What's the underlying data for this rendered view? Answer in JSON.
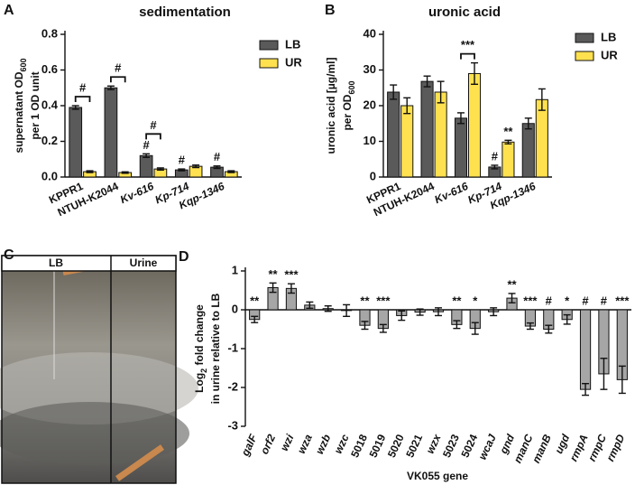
{
  "chart_data": [
    {
      "type": "bar",
      "panel_label": "A",
      "title": "sedimentation",
      "ylabel_lines": [
        [
          "supernatant OD",
          "600"
        ],
        [
          "per 1 OD unit"
        ]
      ],
      "categories": [
        "KPPR1",
        "NTUH-K2044",
        "Kv-616",
        "Kp-714",
        "Kqp-1346"
      ],
      "series": [
        {
          "name": "LB",
          "color": "#5a5a5a",
          "values": [
            0.39,
            0.5,
            0.12,
            0.04,
            0.055
          ],
          "errors": [
            0.01,
            0.01,
            0.01,
            0.005,
            0.007
          ],
          "annotations": [
            null,
            null,
            "#",
            "#",
            "#"
          ]
        },
        {
          "name": "UR",
          "color": "#ffe14f",
          "values": [
            0.03,
            0.025,
            0.045,
            0.06,
            0.03
          ],
          "errors": [
            0.005,
            0.004,
            0.006,
            0.007,
            0.005
          ],
          "annotations": [
            null,
            null,
            null,
            null,
            null
          ]
        }
      ],
      "brackets": [
        "#",
        "#",
        "#",
        null,
        null
      ],
      "ylim": [
        0,
        0.8
      ],
      "yticks": [
        {
          "value": 0,
          "label": "0.0"
        },
        0.2,
        0.4,
        0.6,
        0.8
      ],
      "legend": "top-right"
    },
    {
      "type": "bar",
      "panel_label": "B",
      "title": "uronic acid",
      "ylabel_lines": [
        [
          "uronic acid [µg/ml]"
        ],
        [
          "per OD",
          "600"
        ]
      ],
      "categories": [
        "KPPR1",
        "NTUH-K2044",
        "Kv-616",
        "Kp-714",
        "Kqp-1346"
      ],
      "series": [
        {
          "name": "LB",
          "color": "#5a5a5a",
          "values": [
            23.8,
            26.8,
            16.5,
            2.8,
            15
          ],
          "errors": [
            2,
            1.5,
            1.5,
            0.5,
            1.5
          ],
          "annotations": [
            null,
            null,
            null,
            "#",
            null
          ]
        },
        {
          "name": "UR",
          "color": "#ffe14f",
          "values": [
            20,
            23.8,
            29,
            9.8,
            21.7
          ],
          "errors": [
            2.2,
            3,
            3,
            0.5,
            3
          ],
          "annotations": [
            null,
            null,
            null,
            "**",
            null
          ]
        }
      ],
      "brackets": [
        null,
        null,
        "***",
        null,
        null
      ],
      "ylim": [
        0,
        40
      ],
      "yticks": [
        0,
        10,
        20,
        30,
        40
      ],
      "legend": "top-right"
    },
    {
      "type": "bar",
      "panel_label": "D",
      "ylabel_lines": [
        [
          "Log",
          "2",
          " fold change"
        ],
        [
          "in urine relative to LB"
        ]
      ],
      "xlabel": "VK055 gene",
      "categories": [
        "galF",
        "orf2",
        "wzi",
        "wza",
        "wzb",
        "wzc",
        "5018",
        "5019",
        "5020",
        "5021",
        "wzx",
        "5023",
        "5024",
        "wcaJ",
        "gnd",
        "manC",
        "manB",
        "ugd",
        "rmpA",
        "rmpC",
        "rmpD"
      ],
      "series": [
        {
          "color": "#a6a6a6",
          "values": [
            -0.25,
            0.57,
            0.55,
            0.12,
            0.03,
            -0.02,
            -0.4,
            -0.48,
            -0.15,
            -0.06,
            -0.05,
            -0.38,
            -0.48,
            -0.05,
            0.3,
            -0.42,
            -0.5,
            -0.25,
            -2.05,
            -1.65,
            -1.8
          ],
          "errors": [
            0.08,
            0.12,
            0.12,
            0.08,
            0.07,
            0.15,
            0.1,
            0.1,
            0.12,
            0.08,
            0.1,
            0.1,
            0.15,
            0.1,
            0.12,
            0.08,
            0.1,
            0.12,
            0.15,
            0.4,
            0.35
          ],
          "annotations": [
            "**",
            "**",
            "***",
            null,
            null,
            null,
            "**",
            "***",
            null,
            null,
            null,
            "**",
            "*",
            null,
            "**",
            "***",
            "#",
            "*",
            "#",
            "#",
            "***"
          ]
        }
      ],
      "ylim": [
        -3,
        1
      ],
      "yticks": [
        -3,
        -2,
        -1,
        0,
        1
      ]
    }
  ],
  "photo": {
    "panel_label": "C",
    "labels": [
      "LB",
      "Urine"
    ]
  }
}
